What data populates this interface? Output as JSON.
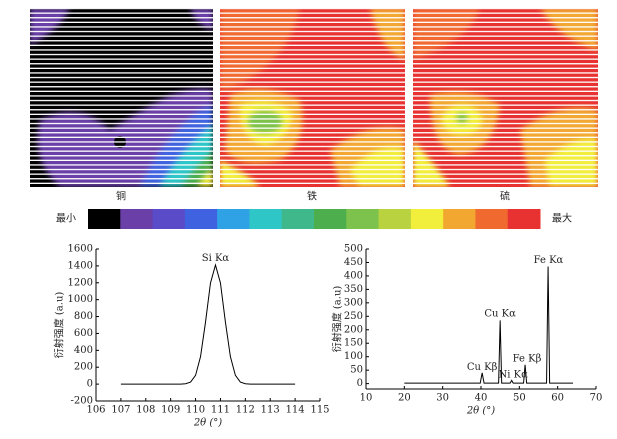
{
  "maps": {
    "labels": [
      "铜",
      "铁",
      "硫"
    ]
  },
  "colorbar": {
    "min_label": "最小",
    "max_label": "最大",
    "colors": [
      "#000000",
      "#6a3fa8",
      "#5a4cc8",
      "#3f63e0",
      "#2fa2e6",
      "#2fc6c8",
      "#3fb88c",
      "#4cae4c",
      "#7cc24c",
      "#b8d240",
      "#f2ee3c",
      "#f2a830",
      "#f06a30",
      "#e83232"
    ]
  },
  "chart_data": [
    {
      "type": "line",
      "x_label": "2θ (°)",
      "y_label": "衍射强度 (a.u)",
      "color": "#000000",
      "x": [
        107,
        107.2,
        107.4,
        107.6,
        107.8,
        108,
        108.2,
        108.4,
        108.6,
        108.8,
        109,
        109.2,
        109.4,
        109.6,
        109.8,
        110,
        110.2,
        110.4,
        110.6,
        110.8,
        111,
        111.2,
        111.4,
        111.6,
        111.8,
        112,
        112.2,
        112.4,
        112.6,
        112.8,
        113,
        113.2,
        113.4,
        113.6,
        113.8,
        114
      ],
      "values": [
        0,
        0,
        0,
        0,
        0,
        0,
        0,
        0,
        0,
        0,
        0,
        0,
        0,
        4,
        24,
        104,
        325,
        734,
        1198,
        1410,
        1198,
        734,
        325,
        104,
        24,
        4,
        0,
        0,
        0,
        0,
        0,
        0,
        0,
        0,
        0,
        0
      ],
      "xlim": [
        106,
        115
      ],
      "xticks": [
        106,
        107,
        108,
        109,
        110,
        111,
        112,
        113,
        114,
        115
      ],
      "ylim": [
        -200,
        1600
      ],
      "yticks": [
        -200,
        0,
        200,
        400,
        600,
        800,
        1000,
        1200,
        1400,
        1600
      ],
      "annotations": [
        "Si Kα"
      ]
    },
    {
      "type": "line",
      "x_label": "2θ (°)",
      "y_label": "衍射强度 (a.u)",
      "color": "#000000",
      "x": [
        20,
        39.8,
        40.3,
        40.8,
        44.6,
        45,
        45.4,
        47.6,
        48,
        48.4,
        51.1,
        51.5,
        51.9,
        57.1,
        57.5,
        57.9,
        64
      ],
      "values": [
        2,
        2,
        40,
        2,
        2,
        235,
        2,
        2,
        12,
        2,
        2,
        70,
        2,
        2,
        435,
        2,
        2
      ],
      "xlim": [
        10,
        70
      ],
      "xticks": [
        10,
        20,
        30,
        40,
        50,
        60,
        70
      ],
      "ylim": [
        -20,
        500
      ],
      "yticks": [
        0,
        50,
        100,
        150,
        200,
        250,
        300,
        350,
        400,
        450,
        500
      ],
      "annotations": [
        "Cu Kβ",
        "Cu Kα",
        "Ni Kα",
        "Fe Kβ",
        "Fe Kα"
      ]
    }
  ]
}
